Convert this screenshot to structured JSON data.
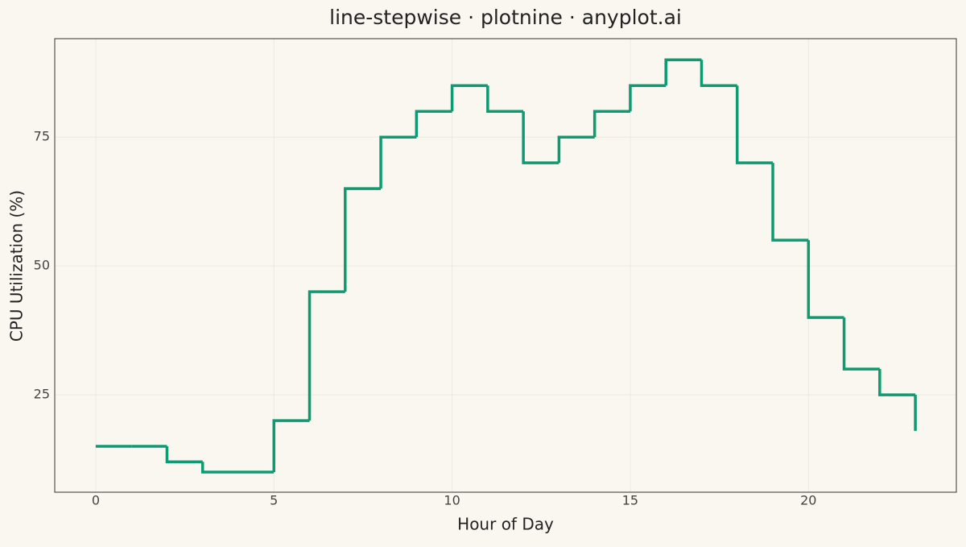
{
  "chart_data": {
    "type": "line-step",
    "title": "line-stepwise · plotnine · anyplot.ai",
    "x_label": "Hour of Day",
    "y_label": "CPU Utilization (%)",
    "x": [
      0,
      1,
      2,
      3,
      4,
      5,
      6,
      7,
      8,
      9,
      10,
      11,
      12,
      13,
      14,
      15,
      16,
      17,
      18,
      19,
      20,
      21,
      22,
      23
    ],
    "series": [
      {
        "color": "#0e9b72",
        "values": [
          15,
          15,
          12,
          10,
          10,
          20,
          45,
          65,
          75,
          80,
          85,
          80,
          70,
          75,
          80,
          85,
          90,
          85,
          70,
          55,
          40,
          30,
          25,
          18
        ]
      }
    ],
    "xlim": [
      -1.15,
      24.15
    ],
    "ylim": [
      6.1,
      94.1
    ],
    "xticks": [
      0,
      5,
      10,
      15,
      20
    ],
    "yticks": [
      25,
      50,
      75
    ],
    "grid": true
  }
}
